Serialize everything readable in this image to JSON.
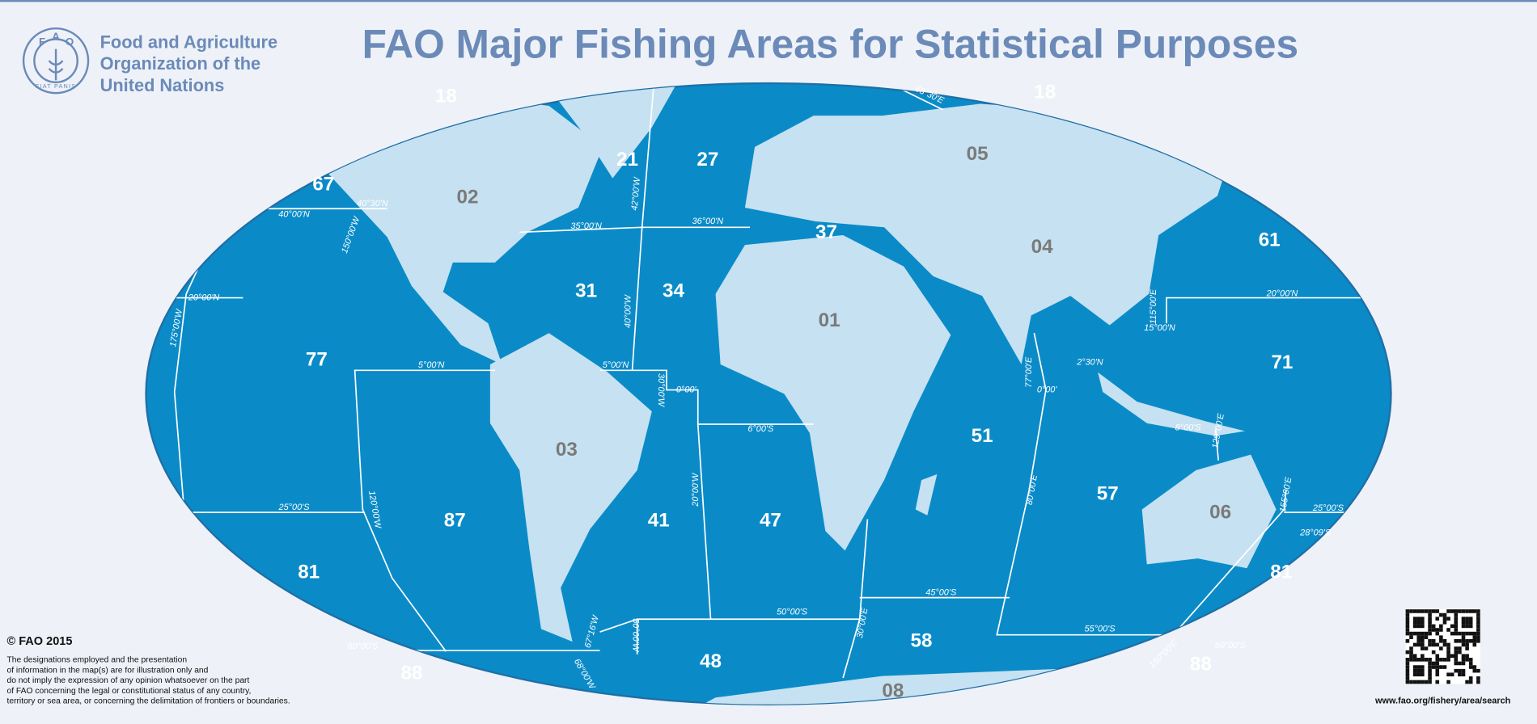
{
  "header": {
    "logo_letters": [
      "F",
      "A",
      "O"
    ],
    "logo_motto": "FIAT PANIS",
    "org_name": [
      "Food and Agriculture",
      "Organization of the",
      "United Nations"
    ],
    "title": "FAO Major Fishing Areas for Statistical Purposes"
  },
  "map": {
    "inland_areas": [
      "02",
      "05",
      "04",
      "01",
      "03",
      "06",
      "08"
    ],
    "marine_areas": [
      "18",
      "18",
      "67",
      "21",
      "27",
      "37",
      "61",
      "31",
      "34",
      "77",
      "71",
      "51",
      "57",
      "87",
      "41",
      "47",
      "81",
      "81",
      "58",
      "48",
      "88",
      "88"
    ],
    "boundary_labels": [
      "68°30'E",
      "40°30'N",
      "40°00'N",
      "150°00'W",
      "35°00'N",
      "36°00'N",
      "42°00'W",
      "20°00'N",
      "175°00'W",
      "40°00'W",
      "5°00'N",
      "5°00'N",
      "30°00'W",
      "0°00'",
      "6°00'S",
      "20°00'W",
      "25°00'S",
      "120°00'W",
      "50°00'S",
      "67°16'W",
      "50°00'W",
      "68°00'W",
      "60°00'S",
      "30°00'E",
      "45°00'S",
      "55°00'S",
      "77°00'E",
      "0°00'",
      "80°00'E",
      "2°30'N",
      "115°00'E",
      "15°00'N",
      "20°00'N",
      "8°00'S",
      "129°00'E",
      "155°00'E",
      "25°00'S",
      "28°09'S",
      "150°00'E",
      "60°00'S"
    ]
  },
  "footer": {
    "copyright": "© FAO 2015",
    "disclaimer": [
      "The designations employed and the presentation",
      "of information in the map(s) are for illustration only and",
      "do not imply the expression of any opinion whatsoever on the part",
      "of FAO concerning the legal or constitutional status of any country,",
      "territory or sea area, or concerning the delimitation of frontiers or boundaries."
    ],
    "url": "www.fao.org/fishery/area/search"
  }
}
